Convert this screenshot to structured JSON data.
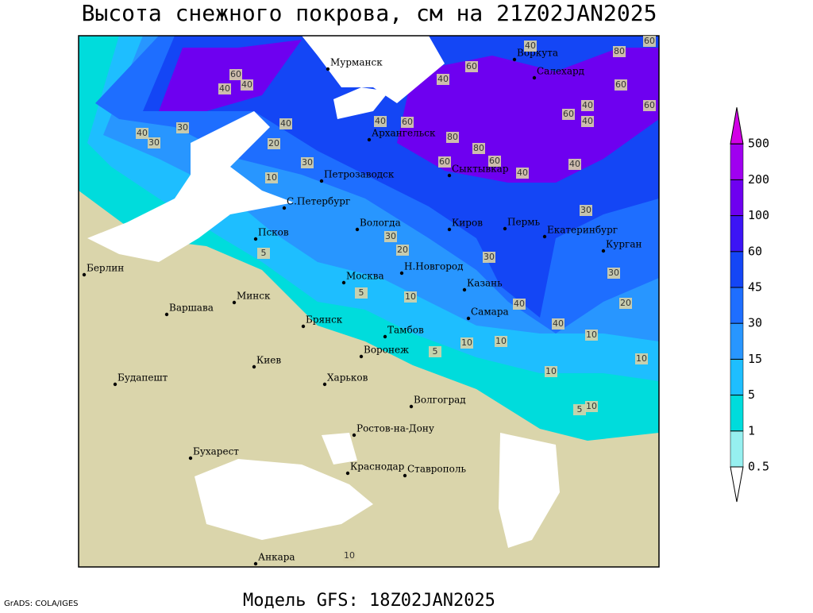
{
  "title": "Высота снежного покрова, см на 21Z02JAN2025",
  "subtitle": "Модель GFS: 18Z02JAN2025",
  "credit": "GrADS: COLA/IGES",
  "colorbar": {
    "levels": [
      0.5,
      1,
      5,
      15,
      30,
      45,
      60,
      100,
      200,
      500
    ],
    "colors": [
      "#ffffff",
      "#96f0f0",
      "#00dcdc",
      "#1ebeff",
      "#2896ff",
      "#1e6eff",
      "#1446f5",
      "#3c14f5",
      "#6e00f0",
      "#a000f0",
      "#d200e6"
    ]
  },
  "map": {
    "cities": [
      "Мурманск",
      "Воркута",
      "Салехард",
      "Архангельск",
      "Петрозаводск",
      "С.Петербург",
      "Сыктывкар",
      "Вологда",
      "Киров",
      "Пермь",
      "Екатеринбург",
      "Курган",
      "Псков",
      "Н.Новгород",
      "Казань",
      "Москва",
      "Минск",
      "Берлин",
      "Варшава",
      "Брянск",
      "Тамбов",
      "Самара",
      "Киев",
      "Воронеж",
      "Харьков",
      "Будапешт",
      "Волгоград",
      "Ростов-на-Дону",
      "Бухарест",
      "Краснодар",
      "Ставрополь",
      "Анкара"
    ],
    "contour_labels": [
      60,
      80,
      60,
      40,
      40,
      60,
      40,
      60,
      40,
      60,
      40,
      40,
      60,
      60,
      40,
      40,
      80,
      80,
      60,
      60,
      40,
      40,
      30,
      40,
      30,
      20,
      30,
      10,
      30,
      20,
      30,
      5,
      5,
      10,
      40,
      40,
      10,
      20,
      30,
      30,
      10,
      10,
      5,
      10,
      10,
      5,
      10,
      10
    ]
  }
}
